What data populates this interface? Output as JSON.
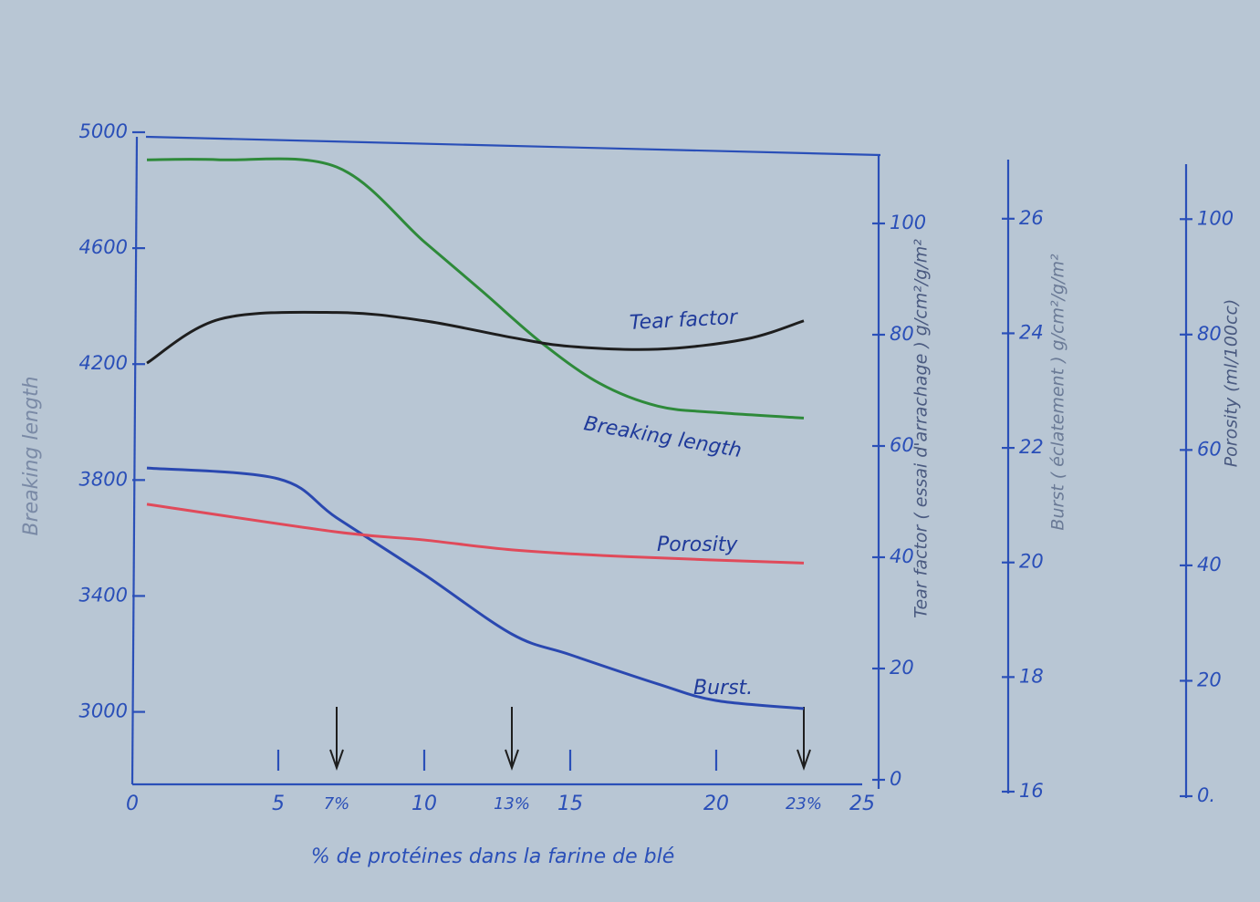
{
  "chart_data": {
    "type": "line",
    "xlabel": "% de protéines dans la farine de blé",
    "xlim": [
      0,
      25
    ],
    "xticks": [
      0,
      5,
      {
        "value": 7,
        "label": "7%"
      },
      10,
      {
        "value": 13,
        "label": "13%"
      },
      15,
      20,
      {
        "value": 23,
        "label": "23%"
      },
      25
    ],
    "ylabel": "Breaking length",
    "ylim": [
      2750,
      5000
    ],
    "yticks": [
      3000,
      3400,
      3800,
      4200,
      4600,
      5000
    ],
    "y2label": "Tear factor ( essai d'arrachage ) g/cm²/g/m²",
    "y2lim": [
      0,
      110
    ],
    "y2ticks": [
      0,
      20,
      40,
      60,
      80,
      100
    ],
    "y3label": "Burst ( éclatement ) g/cm²/g/m²",
    "y3lim": [
      16,
      27
    ],
    "y3ticks": [
      16,
      18,
      20,
      22,
      24,
      26
    ],
    "y4label": "Porosity (ml/100cc)",
    "y4lim": [
      0,
      110
    ],
    "y4ticks": [
      {
        "value": 0,
        "label": "0."
      },
      20,
      40,
      60,
      80,
      100
    ],
    "series": [
      {
        "name": "Breaking length",
        "color": "#2e8a3a",
        "axis": "y",
        "x": [
          0.5,
          3,
          7,
          10,
          12,
          14,
          16,
          18,
          20,
          23
        ],
        "values": [
          4905,
          4905,
          4880,
          4622,
          4450,
          4275,
          4134,
          4055,
          4033,
          4014
        ]
      },
      {
        "name": "Tear factor",
        "color": "#1e1e1e",
        "axis": "y2",
        "x": [
          0.5,
          3,
          7,
          10,
          13,
          15,
          18,
          21,
          23
        ],
        "values": [
          74.9,
          82.8,
          84,
          82.5,
          79.5,
          77.9,
          77.4,
          79.2,
          82.5
        ]
      },
      {
        "name": "Burst.",
        "color": "#2a48b0",
        "axis": "y3",
        "x": [
          0.5,
          5,
          7,
          10,
          13,
          15,
          18,
          20,
          23
        ],
        "values": [
          21.65,
          21.46,
          20.78,
          19.79,
          18.75,
          18.39,
          17.88,
          17.59,
          17.45
        ]
      },
      {
        "name": "Porosity",
        "color": "#e04a5a",
        "axis": "y4",
        "x": [
          0.5,
          7,
          10,
          13,
          17,
          23
        ],
        "values": [
          50.6,
          45.8,
          44.4,
          42.7,
          41.5,
          40.4
        ]
      }
    ]
  }
}
